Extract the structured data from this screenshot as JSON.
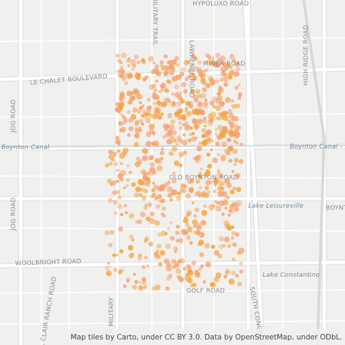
{
  "map": {
    "labels": [
      "HYPOLUXO ROAD",
      "MILITARY TRAIL",
      "JOG ROAD",
      "LE CHALET BOULEVARD",
      "MINER ROAD",
      "LAWRENCE ROAD",
      "HIGH RIDGE ROAD",
      "Boynton Canal",
      "Boynton Canal - B",
      "OLD BOYNTON ROAD",
      "Lake Leisureville",
      "BOYNTON BEA",
      "JOG ROAD",
      "WOOLBRIGHT ROAD",
      "Lake Constantino",
      "GOLF ROAD",
      "EL CLAIR RANCH ROAD",
      "SOUTH CONGRESS",
      "SOUTH MILITARY"
    ],
    "attribution": "Map tiles by Carto, under CC BY 3.0. Data by OpenStreetMap, under ODbL."
  }
}
